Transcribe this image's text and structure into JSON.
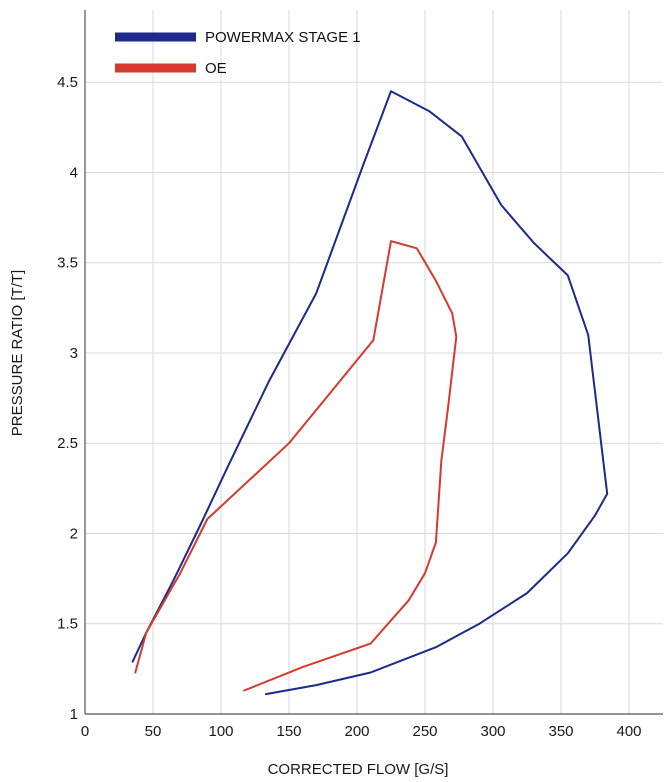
{
  "chart_data": {
    "type": "line",
    "xlabel": "CORRECTED FLOW [G/S]",
    "ylabel": "PRESSURE RATIO [T/T]",
    "xlim": [
      0,
      425
    ],
    "ylim": [
      1,
      4.9
    ],
    "xticks": [
      0,
      50,
      100,
      150,
      200,
      250,
      300,
      350,
      400
    ],
    "yticks": [
      1,
      1.5,
      2,
      2.5,
      3,
      3.5,
      4,
      4.5
    ],
    "ytick_labels": [
      "1",
      "1.5",
      "2",
      "2.5",
      "3",
      "3.5",
      "4",
      "4.5"
    ],
    "grid": true,
    "legend_position": "top-left",
    "series": [
      {
        "name": "POWERMAX STAGE 1",
        "color": "#1c2a8c",
        "x": [
          35,
          45,
          65,
          85,
          105,
          135,
          170,
          205,
          225,
          253,
          277,
          306,
          330,
          355,
          370,
          384,
          375,
          355,
          325,
          290,
          258,
          210,
          170,
          133
        ],
        "y": [
          1.29,
          1.45,
          1.74,
          2.05,
          2.37,
          2.84,
          3.33,
          4.05,
          4.45,
          4.34,
          4.2,
          3.82,
          3.61,
          3.43,
          3.1,
          2.22,
          2.1,
          1.89,
          1.67,
          1.5,
          1.37,
          1.23,
          1.16,
          1.11
        ]
      },
      {
        "name": "OE",
        "color": "#d63a2e",
        "x": [
          37,
          45,
          70,
          90,
          150,
          212,
          225,
          244,
          258,
          270,
          273,
          267,
          262,
          258,
          250,
          238,
          210,
          160,
          117
        ],
        "y": [
          1.23,
          1.45,
          1.78,
          2.08,
          2.5,
          3.07,
          3.62,
          3.58,
          3.4,
          3.22,
          3.09,
          2.7,
          2.4,
          1.95,
          1.78,
          1.63,
          1.39,
          1.26,
          1.13
        ]
      }
    ]
  }
}
